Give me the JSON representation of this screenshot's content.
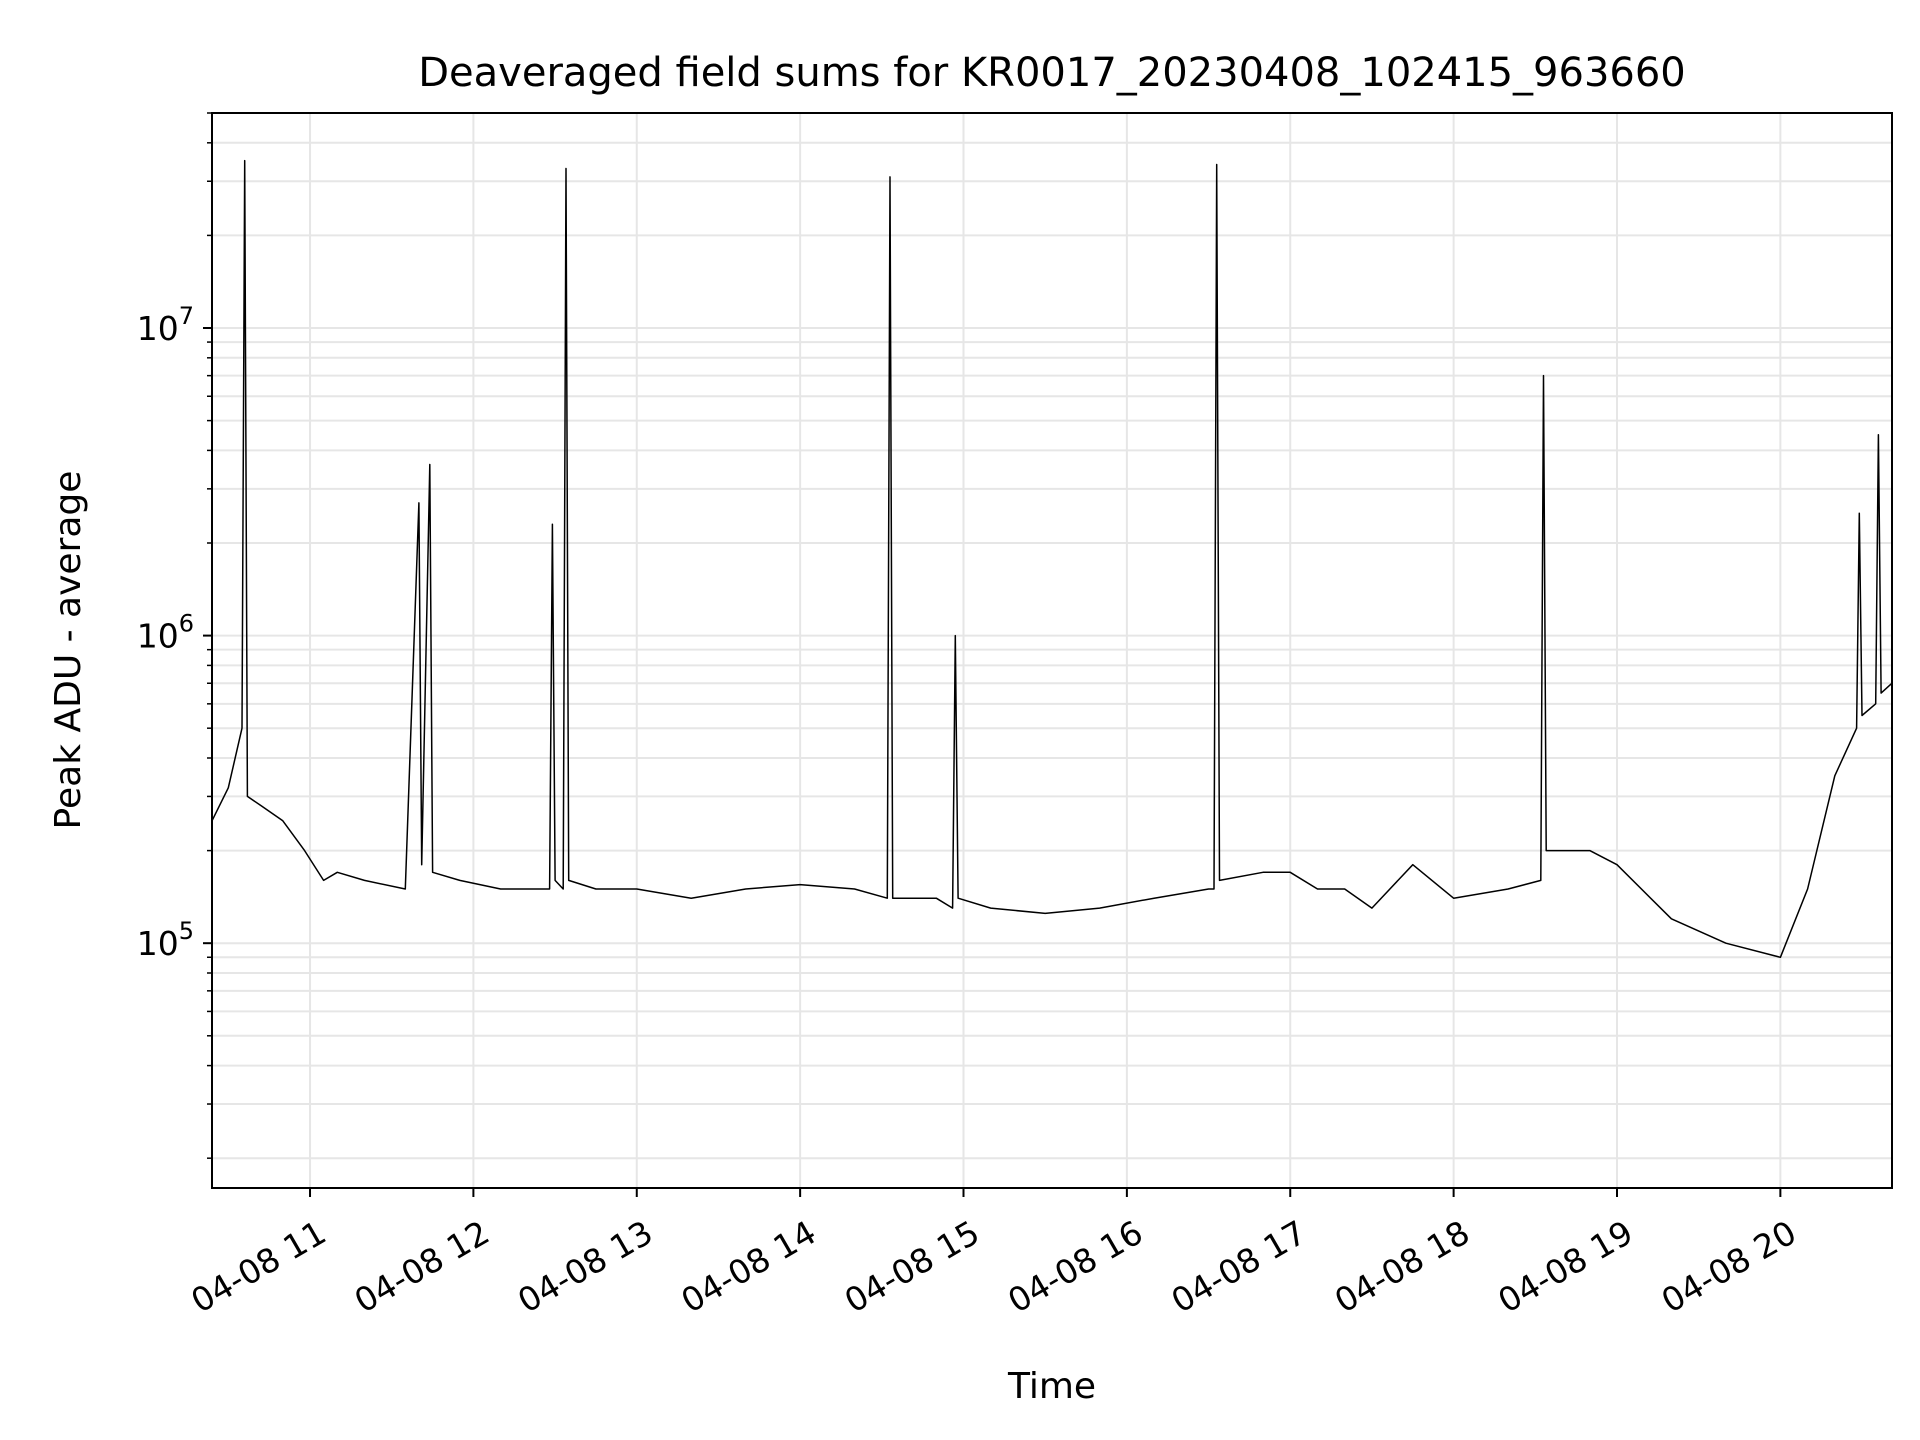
{
  "chart_data": {
    "type": "line",
    "title": "Deaveraged field sums for KR0017_20230408_102415_963660",
    "xlabel": "Time",
    "ylabel": "Peak ADU - average",
    "yscale": "log",
    "ylim": [
      16000,
      50000000
    ],
    "xlim": [
      "04-08 10:24",
      "04-08 20:41"
    ],
    "grid": true,
    "legend": "none",
    "line_color": "#000000",
    "grid_color": "#e6e6e6",
    "x_ticks": [
      {
        "time": "04-08 11:00",
        "label": "04-08 11"
      },
      {
        "time": "04-08 12:00",
        "label": "04-08 12"
      },
      {
        "time": "04-08 13:00",
        "label": "04-08 13"
      },
      {
        "time": "04-08 14:00",
        "label": "04-08 14"
      },
      {
        "time": "04-08 15:00",
        "label": "04-08 15"
      },
      {
        "time": "04-08 16:00",
        "label": "04-08 16"
      },
      {
        "time": "04-08 17:00",
        "label": "04-08 17"
      },
      {
        "time": "04-08 18:00",
        "label": "04-08 18"
      },
      {
        "time": "04-08 19:00",
        "label": "04-08 19"
      },
      {
        "time": "04-08 20:00",
        "label": "04-08 20"
      }
    ],
    "y_ticks": [
      {
        "value": 100000,
        "base": "10",
        "exp": "5"
      },
      {
        "value": 1000000,
        "base": "10",
        "exp": "6"
      },
      {
        "value": 10000000,
        "base": "10",
        "exp": "7"
      }
    ],
    "series": [
      {
        "points": [
          [
            "04-08 10:24",
            250000
          ],
          [
            "04-08 10:30",
            320000
          ],
          [
            "04-08 10:35",
            500000
          ],
          [
            "04-08 10:36",
            35000000
          ],
          [
            "04-08 10:37",
            300000
          ],
          [
            "04-08 10:42",
            280000
          ],
          [
            "04-08 10:50",
            250000
          ],
          [
            "04-08 10:58",
            200000
          ],
          [
            "04-08 11:05",
            160000
          ],
          [
            "04-08 11:10",
            170000
          ],
          [
            "04-08 11:20",
            160000
          ],
          [
            "04-08 11:35",
            150000
          ],
          [
            "04-08 11:40",
            2700000
          ],
          [
            "04-08 11:41",
            180000
          ],
          [
            "04-08 11:44",
            3600000
          ],
          [
            "04-08 11:45",
            170000
          ],
          [
            "04-08 11:55",
            160000
          ],
          [
            "04-08 12:10",
            150000
          ],
          [
            "04-08 12:28",
            150000
          ],
          [
            "04-08 12:29",
            2300000
          ],
          [
            "04-08 12:30",
            160000
          ],
          [
            "04-08 12:33",
            150000
          ],
          [
            "04-08 12:34",
            33000000
          ],
          [
            "04-08 12:35",
            160000
          ],
          [
            "04-08 12:45",
            150000
          ],
          [
            "04-08 13:00",
            150000
          ],
          [
            "04-08 13:20",
            140000
          ],
          [
            "04-08 13:40",
            150000
          ],
          [
            "04-08 14:00",
            155000
          ],
          [
            "04-08 14:20",
            150000
          ],
          [
            "04-08 14:32",
            140000
          ],
          [
            "04-08 14:33",
            31000000
          ],
          [
            "04-08 14:34",
            140000
          ],
          [
            "04-08 14:50",
            140000
          ],
          [
            "04-08 14:56",
            130000
          ],
          [
            "04-08 14:57",
            1000000
          ],
          [
            "04-08 14:58",
            140000
          ],
          [
            "04-08 15:10",
            130000
          ],
          [
            "04-08 15:30",
            125000
          ],
          [
            "04-08 15:50",
            130000
          ],
          [
            "04-08 16:10",
            140000
          ],
          [
            "04-08 16:30",
            150000
          ],
          [
            "04-08 16:32",
            150000
          ],
          [
            "04-08 16:33",
            34000000
          ],
          [
            "04-08 16:34",
            160000
          ],
          [
            "04-08 16:50",
            170000
          ],
          [
            "04-08 17:00",
            170000
          ],
          [
            "04-08 17:10",
            150000
          ],
          [
            "04-08 17:20",
            150000
          ],
          [
            "04-08 17:30",
            130000
          ],
          [
            "04-08 17:45",
            180000
          ],
          [
            "04-08 18:00",
            140000
          ],
          [
            "04-08 18:20",
            150000
          ],
          [
            "04-08 18:32",
            160000
          ],
          [
            "04-08 18:33",
            7000000
          ],
          [
            "04-08 18:34",
            200000
          ],
          [
            "04-08 18:50",
            200000
          ],
          [
            "04-08 19:00",
            180000
          ],
          [
            "04-08 19:20",
            120000
          ],
          [
            "04-08 19:40",
            100000
          ],
          [
            "04-08 20:00",
            90000
          ],
          [
            "04-08 20:10",
            150000
          ],
          [
            "04-08 20:20",
            350000
          ],
          [
            "04-08 20:28",
            500000
          ],
          [
            "04-08 20:29",
            2500000
          ],
          [
            "04-08 20:30",
            550000
          ],
          [
            "04-08 20:35",
            600000
          ],
          [
            "04-08 20:36",
            4500000
          ],
          [
            "04-08 20:37",
            650000
          ],
          [
            "04-08 20:41",
            700000
          ]
        ]
      }
    ]
  }
}
